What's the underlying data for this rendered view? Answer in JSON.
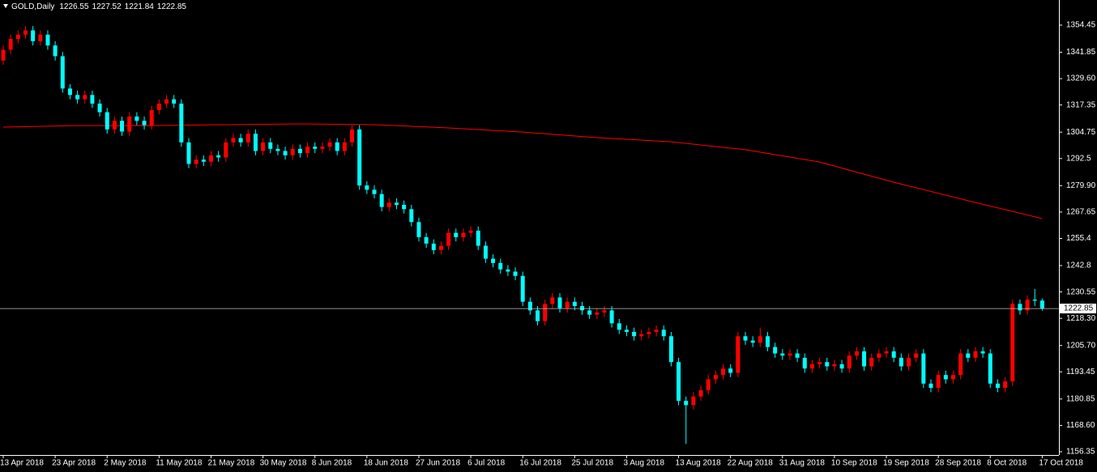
{
  "chart_data": {
    "type": "candlestick",
    "title": "GOLD,Daily",
    "categories": [
      "13 Apr 2018",
      null,
      null,
      null,
      null,
      null,
      null,
      "23 Apr 2018",
      null,
      null,
      null,
      null,
      null,
      null,
      "2 May 2018",
      null,
      null,
      null,
      null,
      null,
      null,
      "11 May 2018",
      null,
      null,
      null,
      null,
      null,
      null,
      "21 May 2018",
      null,
      null,
      null,
      null,
      null,
      null,
      "30 May 2018",
      null,
      null,
      null,
      null,
      null,
      null,
      "8 Jun 2018",
      null,
      null,
      null,
      null,
      null,
      null,
      "18 Jun 2018",
      null,
      null,
      null,
      null,
      null,
      null,
      "27 Jun 2018",
      null,
      null,
      null,
      null,
      null,
      null,
      "6 Jul 2018",
      null,
      null,
      null,
      null,
      null,
      null,
      "16 Jul 2018",
      null,
      null,
      null,
      null,
      null,
      null,
      "25 Jul 2018",
      null,
      null,
      null,
      null,
      null,
      null,
      "3 Aug 2018",
      null,
      null,
      null,
      null,
      null,
      null,
      "13 Aug 2018",
      null,
      null,
      null,
      null,
      null,
      null,
      "22 Aug 2018",
      null,
      null,
      null,
      null,
      null,
      null,
      "31 Aug 2018",
      null,
      null,
      null,
      null,
      null,
      null,
      "10 Sep 2018",
      null,
      null,
      null,
      null,
      null,
      null,
      "19 Sep 2018",
      null,
      null,
      null,
      null,
      null,
      null,
      "28 Sep 2018",
      null,
      null,
      null,
      null,
      null,
      null,
      "8 Oct 2018",
      null,
      null,
      null,
      null,
      null,
      null,
      "17 Oct 2018"
    ],
    "open": [
      1338,
      1343,
      1348,
      1350,
      1352,
      1347,
      1350,
      1345,
      1340,
      1325,
      1322,
      1320,
      1322,
      1318,
      1314,
      1306,
      1310,
      1305,
      1312,
      1310,
      1308,
      1315,
      1318,
      1320,
      1318,
      1300,
      1290,
      1292,
      1291,
      1294,
      1293,
      1300,
      1302,
      1300,
      1304,
      1296,
      1300,
      1297,
      1296,
      1294,
      1297,
      1295,
      1298,
      1297,
      1298,
      1300,
      1296,
      1300,
      1306,
      1280,
      1278,
      1276,
      1270,
      1272,
      1271,
      1269,
      1263,
      1256,
      1253,
      1250,
      1252,
      1258,
      1256,
      1258,
      1259,
      1252,
      1246,
      1244,
      1241,
      1240,
      1238,
      1226,
      1222,
      1217,
      1225,
      1228,
      1223,
      1226,
      1224,
      1222,
      1220,
      1221,
      1222,
      1216,
      1213,
      1212,
      1210,
      1211,
      1212,
      1213,
      1210,
      1198,
      1180,
      1178,
      1182,
      1185,
      1190,
      1192,
      1195,
      1193,
      1210,
      1208,
      1207,
      1210,
      1205,
      1202,
      1201,
      1202,
      1200,
      1195,
      1197,
      1198,
      1196,
      1197,
      1195,
      1201,
      1203,
      1196,
      1200,
      1202,
      1203,
      1200,
      1196,
      1200,
      1202,
      1188,
      1186,
      1192,
      1190,
      1192,
      1202,
      1200,
      1203,
      1202,
      1188,
      1186,
      1189,
      1225,
      1222,
      1227,
      1226.55
    ],
    "high": [
      1345,
      1350,
      1352,
      1354,
      1354,
      1352,
      1352,
      1347,
      1342,
      1327,
      1324,
      1324,
      1324,
      1320,
      1316,
      1312,
      1312,
      1314,
      1314,
      1312,
      1317,
      1320,
      1322,
      1322,
      1320,
      1302,
      1294,
      1294,
      1296,
      1296,
      1302,
      1304,
      1304,
      1306,
      1306,
      1302,
      1302,
      1299,
      1298,
      1299,
      1299,
      1300,
      1300,
      1300,
      1302,
      1302,
      1302,
      1308,
      1308,
      1282,
      1280,
      1278,
      1274,
      1274,
      1273,
      1271,
      1265,
      1258,
      1255,
      1254,
      1260,
      1260,
      1260,
      1261,
      1261,
      1254,
      1248,
      1246,
      1243,
      1242,
      1240,
      1228,
      1224,
      1227,
      1230,
      1230,
      1228,
      1228,
      1226,
      1224,
      1223,
      1224,
      1224,
      1218,
      1215,
      1214,
      1213,
      1214,
      1215,
      1215,
      1212,
      1200,
      1182,
      1184,
      1187,
      1192,
      1194,
      1197,
      1197,
      1212,
      1212,
      1210,
      1214,
      1212,
      1207,
      1204,
      1204,
      1204,
      1202,
      1199,
      1200,
      1200,
      1199,
      1199,
      1203,
      1205,
      1205,
      1202,
      1204,
      1205,
      1205,
      1202,
      1202,
      1204,
      1204,
      1190,
      1194,
      1194,
      1194,
      1204,
      1204,
      1205,
      1205,
      1204,
      1190,
      1191,
      1227,
      1227,
      1229,
      1232,
      1227.52
    ],
    "low": [
      1336,
      1341,
      1346,
      1348,
      1345,
      1345,
      1343,
      1338,
      1323,
      1320,
      1318,
      1318,
      1316,
      1312,
      1304,
      1304,
      1303,
      1303,
      1308,
      1306,
      1306,
      1313,
      1316,
      1316,
      1298,
      1288,
      1288,
      1289,
      1289,
      1291,
      1291,
      1298,
      1298,
      1298,
      1294,
      1294,
      1295,
      1294,
      1292,
      1292,
      1293,
      1293,
      1295,
      1295,
      1296,
      1294,
      1294,
      1298,
      1278,
      1276,
      1274,
      1268,
      1268,
      1269,
      1267,
      1261,
      1254,
      1251,
      1248,
      1248,
      1250,
      1254,
      1254,
      1256,
      1250,
      1244,
      1242,
      1239,
      1238,
      1236,
      1224,
      1220,
      1215,
      1215,
      1223,
      1221,
      1221,
      1222,
      1220,
      1218,
      1218,
      1219,
      1214,
      1211,
      1210,
      1208,
      1208,
      1209,
      1210,
      1208,
      1196,
      1178,
      1160,
      1176,
      1180,
      1183,
      1188,
      1190,
      1191,
      1191,
      1206,
      1205,
      1205,
      1203,
      1200,
      1199,
      1199,
      1198,
      1193,
      1193,
      1195,
      1194,
      1194,
      1193,
      1193,
      1199,
      1194,
      1194,
      1198,
      1200,
      1198,
      1194,
      1194,
      1198,
      1186,
      1184,
      1184,
      1188,
      1188,
      1190,
      1198,
      1198,
      1200,
      1186,
      1184,
      1184,
      1187,
      1220,
      1220,
      1224,
      1221.84
    ],
    "close": [
      1343,
      1348,
      1350,
      1352,
      1347,
      1350,
      1345,
      1340,
      1325,
      1322,
      1320,
      1322,
      1318,
      1314,
      1306,
      1310,
      1305,
      1312,
      1310,
      1308,
      1315,
      1318,
      1320,
      1318,
      1300,
      1290,
      1292,
      1291,
      1294,
      1293,
      1300,
      1302,
      1300,
      1304,
      1296,
      1300,
      1297,
      1296,
      1294,
      1297,
      1295,
      1298,
      1297,
      1298,
      1300,
      1296,
      1300,
      1306,
      1280,
      1278,
      1276,
      1270,
      1272,
      1271,
      1269,
      1263,
      1256,
      1253,
      1250,
      1252,
      1258,
      1256,
      1258,
      1259,
      1252,
      1246,
      1244,
      1241,
      1240,
      1238,
      1226,
      1222,
      1217,
      1225,
      1228,
      1223,
      1226,
      1224,
      1222,
      1220,
      1221,
      1222,
      1216,
      1213,
      1212,
      1210,
      1211,
      1212,
      1213,
      1210,
      1198,
      1180,
      1178,
      1182,
      1185,
      1190,
      1192,
      1195,
      1193,
      1210,
      1208,
      1207,
      1210,
      1205,
      1202,
      1201,
      1202,
      1200,
      1195,
      1197,
      1198,
      1196,
      1197,
      1195,
      1201,
      1203,
      1196,
      1200,
      1202,
      1203,
      1200,
      1196,
      1200,
      1202,
      1188,
      1186,
      1192,
      1190,
      1192,
      1202,
      1200,
      1203,
      1202,
      1188,
      1186,
      1189,
      1225,
      1222,
      1227,
      1226.5,
      1222.85
    ],
    "up_color": "#ff0000",
    "down_color": "#00ffff",
    "ma": {
      "color": "#ff0000",
      "x": [
        0,
        10,
        20,
        30,
        40,
        50,
        60,
        70,
        80,
        90,
        100,
        110,
        120,
        130,
        140
      ],
      "values": [
        1307.1,
        1307.8,
        1307.8,
        1308.2,
        1308.6,
        1308.2,
        1306.7,
        1304.8,
        1302.2,
        1300.3,
        1296.6,
        1290.9,
        1281.5,
        1272.9,
        1264.6
      ]
    },
    "ylim": [
      1154.85,
      1366.1
    ],
    "yticks": [
      1156.35,
      {
        "value": 1168.6,
        "label": "1168.60"
      },
      1180.85,
      1193.45,
      {
        "value": 1205.7,
        "label": "1205.70"
      },
      {
        "value": 1218.3,
        "label": "1218.30"
      },
      1230.55,
      1242.8,
      1255.4,
      1267.65,
      {
        "value": 1279.9,
        "label": "1279.90"
      },
      1292.5,
      1304.75,
      1317.35,
      {
        "value": 1329.6,
        "label": "1329.60"
      },
      1341.85,
      1354.45
    ]
  }
}
